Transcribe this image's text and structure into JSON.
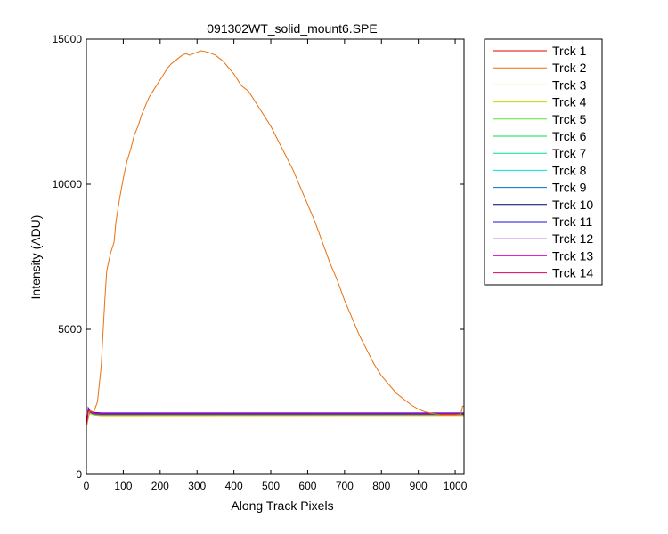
{
  "chart_data": {
    "type": "line",
    "title": "091302WT_solid_mount6.SPE",
    "xlabel": "Along Track Pixels",
    "ylabel": "Intensity (ADU)",
    "xlim": [
      0,
      1024
    ],
    "ylim": [
      0,
      15000
    ],
    "xticks": [
      0,
      100,
      200,
      300,
      400,
      500,
      600,
      700,
      800,
      900,
      1000
    ],
    "yticks": [
      0,
      5000,
      10000,
      15000
    ],
    "grid": false,
    "legend_position": "outside-right",
    "series": [
      {
        "name": "Trck 1",
        "color": "#e00000",
        "x": [
          1,
          5,
          10,
          20,
          40,
          1024
        ],
        "y": [
          1700,
          2250,
          2180,
          2110,
          2080,
          2070
        ]
      },
      {
        "name": "Trck 2",
        "color": "#e87010",
        "x": [
          1,
          10,
          20,
          30,
          40,
          50,
          55,
          60,
          65,
          70,
          75,
          80,
          90,
          100,
          110,
          120,
          130,
          140,
          150,
          160,
          170,
          180,
          190,
          200,
          210,
          220,
          230,
          240,
          250,
          260,
          270,
          280,
          290,
          300,
          310,
          320,
          330,
          340,
          350,
          360,
          370,
          380,
          400,
          420,
          440,
          460,
          480,
          500,
          520,
          540,
          560,
          580,
          600,
          620,
          640,
          660,
          680,
          700,
          720,
          740,
          760,
          780,
          800,
          820,
          840,
          860,
          880,
          900,
          920,
          940,
          960,
          980,
          1000,
          1015,
          1020,
          1024
        ],
        "y": [
          1700,
          2200,
          2150,
          2500,
          3700,
          6000,
          7000,
          7300,
          7600,
          7800,
          8000,
          8700,
          9500,
          10200,
          10800,
          11200,
          11700,
          12000,
          12400,
          12700,
          13000,
          13200,
          13400,
          13600,
          13800,
          14000,
          14150,
          14250,
          14350,
          14450,
          14500,
          14450,
          14500,
          14550,
          14600,
          14580,
          14550,
          14500,
          14450,
          14350,
          14250,
          14100,
          13800,
          13400,
          13200,
          12800,
          12400,
          12000,
          11500,
          11000,
          10500,
          9900,
          9300,
          8700,
          8000,
          7300,
          6700,
          6000,
          5400,
          4800,
          4300,
          3800,
          3400,
          3100,
          2800,
          2600,
          2400,
          2250,
          2150,
          2100,
          2050,
          2050,
          2050,
          2070,
          2350,
          2350
        ]
      },
      {
        "name": "Trck 3",
        "color": "#e0d000",
        "x": [
          1,
          5,
          10,
          20,
          40,
          1024
        ],
        "y": [
          1700,
          2200,
          2100,
          2050,
          2020,
          2030
        ]
      },
      {
        "name": "Trck 4",
        "color": "#c8d800",
        "x": [
          1,
          5,
          10,
          20,
          40,
          1024
        ],
        "y": [
          1700,
          2200,
          2100,
          2050,
          2030,
          2040
        ]
      },
      {
        "name": "Trck 5",
        "color": "#60e020",
        "x": [
          1,
          5,
          10,
          20,
          40,
          1024
        ],
        "y": [
          1700,
          2200,
          2110,
          2060,
          2040,
          2050
        ]
      },
      {
        "name": "Trck 6",
        "color": "#00e040",
        "x": [
          1,
          5,
          10,
          20,
          40,
          1024
        ],
        "y": [
          1700,
          2210,
          2120,
          2070,
          2050,
          2055
        ]
      },
      {
        "name": "Trck 7",
        "color": "#00e0a0",
        "x": [
          1,
          5,
          10,
          20,
          40,
          1024
        ],
        "y": [
          1700,
          2220,
          2130,
          2080,
          2060,
          2060
        ]
      },
      {
        "name": "Trck 8",
        "color": "#00e0e0",
        "x": [
          1,
          5,
          10,
          20,
          40,
          1024
        ],
        "y": [
          1700,
          2230,
          2140,
          2090,
          2070,
          2070
        ]
      },
      {
        "name": "Trck 9",
        "color": "#0070c0",
        "x": [
          1,
          5,
          10,
          20,
          40,
          1024
        ],
        "y": [
          1700,
          2240,
          2150,
          2100,
          2080,
          2080
        ]
      },
      {
        "name": "Trck 10",
        "color": "#000060",
        "x": [
          1,
          5,
          10,
          20,
          40,
          1024
        ],
        "y": [
          1700,
          2250,
          2160,
          2110,
          2090,
          2090
        ]
      },
      {
        "name": "Trck 11",
        "color": "#2010d0",
        "x": [
          1,
          5,
          10,
          20,
          40,
          1024
        ],
        "y": [
          1700,
          2300,
          2200,
          2140,
          2120,
          2120
        ]
      },
      {
        "name": "Trck 12",
        "color": "#9000d0",
        "x": [
          1,
          5,
          10,
          20,
          40,
          1024
        ],
        "y": [
          1700,
          2260,
          2170,
          2120,
          2100,
          2100
        ]
      },
      {
        "name": "Trck 13",
        "color": "#e000d0",
        "x": [
          1,
          5,
          10,
          20,
          40,
          1024
        ],
        "y": [
          1700,
          2240,
          2150,
          2100,
          2080,
          2080
        ]
      },
      {
        "name": "Trck 14",
        "color": "#e00060",
        "x": [
          1,
          5,
          10,
          20,
          40,
          1024
        ],
        "y": [
          1700,
          2230,
          2140,
          2090,
          2070,
          2080
        ]
      }
    ]
  }
}
